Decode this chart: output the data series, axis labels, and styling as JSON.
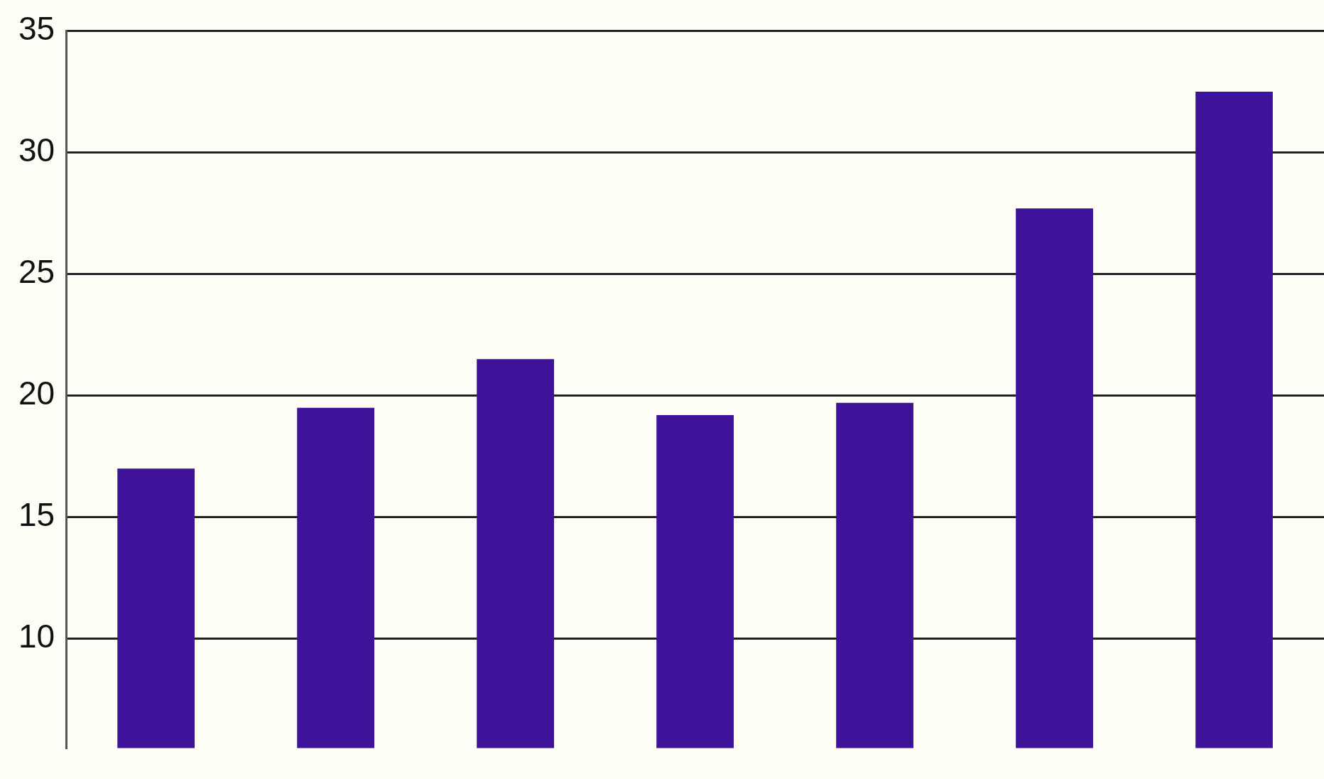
{
  "chart_data": {
    "type": "bar",
    "categories": [
      null,
      null,
      null,
      null,
      null,
      null,
      null
    ],
    "values": [
      17,
      19.5,
      21.5,
      19.2,
      19.7,
      27.7,
      32.5
    ],
    "color": "#3f1399",
    "ylim": [
      5.5,
      35
    ],
    "yticks": [
      10,
      15,
      20,
      25,
      30,
      35
    ],
    "grid": "y",
    "legend": false
  }
}
